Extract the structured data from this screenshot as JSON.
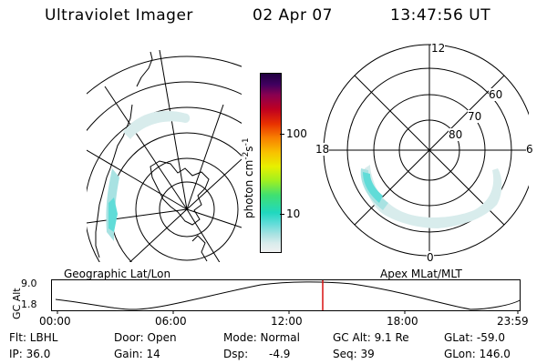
{
  "header": {
    "instrument": "Ultraviolet Imager",
    "date": "02 Apr 07",
    "time": "13:47:56 UT"
  },
  "left_panel": {
    "caption": "Geographic Lat/Lon"
  },
  "colorbar": {
    "unit_label": "photon cm^-2 s^-1",
    "ticks": [
      "100",
      "10"
    ],
    "colors": [
      "#f0f0f0",
      "#d8ecec",
      "#a8e2e2",
      "#60dcd8",
      "#20d8c0",
      "#40e070",
      "#a0f020",
      "#e8f000",
      "#f8c000",
      "#f88000",
      "#e83000",
      "#c00020",
      "#8a0050",
      "#400060",
      "#200040"
    ]
  },
  "right_panel": {
    "caption": "Apex MLat/MLT",
    "mlt_labels": [
      "12",
      "18",
      "6",
      "0"
    ],
    "lat_labels": [
      "60",
      "70",
      "80"
    ]
  },
  "altitude_plot": {
    "ylabel": "GC Alt",
    "yticks": [
      "9.0",
      "1.8"
    ],
    "xticks": [
      "00:00",
      "06:00",
      "12:00",
      "18:00",
      "23:59"
    ],
    "marker_color": "#d81010"
  },
  "info": {
    "flt": "Flt: LBHL",
    "door": "Door: Open",
    "mode": "Mode: Normal",
    "gcalt": "GC Alt: 9.1 Re",
    "glat": "GLat: -59.0",
    "ip": "IP: 36.0",
    "gain": "Gain: 14",
    "dsp": "Dsp:",
    "dsp_value": "-4.9",
    "seq": "Seq: 39",
    "glon": "GLon: 146.0"
  }
}
